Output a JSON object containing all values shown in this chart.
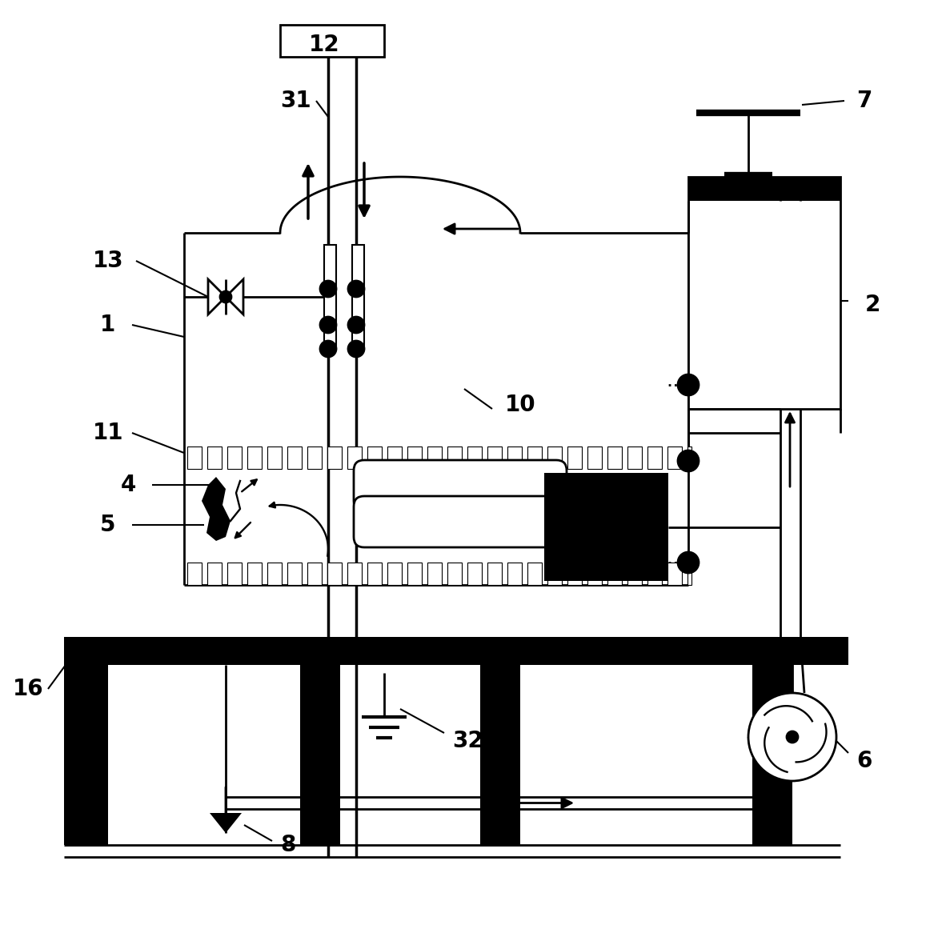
{
  "bg_color": "#ffffff",
  "lc": "#000000",
  "lw": 2.0,
  "lw_thick": 6.0,
  "fig_w": 11.87,
  "fig_h": 11.61,
  "xlim": [
    0,
    11.87
  ],
  "ylim": [
    0,
    11.61
  ]
}
